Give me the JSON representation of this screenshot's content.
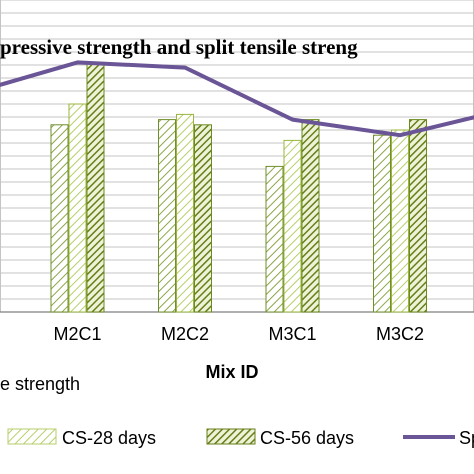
{
  "chart_data": {
    "type": "bar",
    "title": "pressive strength and split tensile streng",
    "xlabel": "Mix ID",
    "ylabel": "",
    "categories": [
      "",
      "M2C1",
      "M2C2",
      "M3C1",
      "M3C2",
      ""
    ],
    "series": [
      {
        "name": "",
        "type": "bar",
        "color": "#6f8f2a",
        "pattern": "sparse",
        "values": [
          null,
          36,
          37,
          28,
          34,
          null
        ]
      },
      {
        "name": "CS-28 days",
        "type": "bar",
        "color": "#9ab63e",
        "pattern": "light",
        "values": [
          null,
          40,
          38,
          33,
          35,
          null
        ]
      },
      {
        "name": "CS-56 days",
        "type": "bar",
        "color": "#6b8a1f",
        "pattern": "dense",
        "values": [
          null,
          48,
          36,
          37,
          37,
          null
        ]
      },
      {
        "name": "Sp",
        "type": "line",
        "color": "#6a5596",
        "values": [
          4.2,
          4.8,
          4.7,
          3.7,
          3.4,
          3.9
        ]
      }
    ],
    "ylim": [
      0,
      60
    ],
    "y2lim": [
      0,
      6
    ],
    "grid": true,
    "legend_position": "bottom",
    "partial_text": "e strength"
  }
}
